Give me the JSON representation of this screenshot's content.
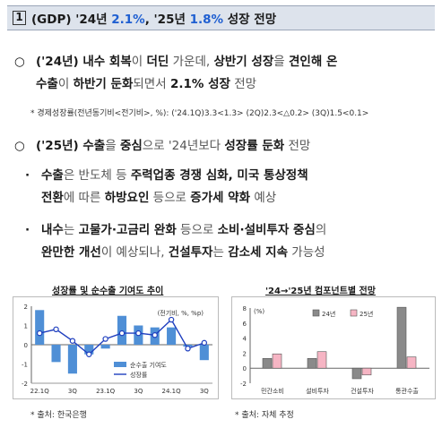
{
  "header": {
    "num": "1",
    "title_a": "(GDP) '24년 ",
    "title_b": "2.1%",
    "title_c": ", '25년 ",
    "title_d": "1.8%",
    "title_e": " 성장 전망"
  },
  "bullet1": {
    "marker": "○",
    "l1": [
      {
        "t": "('24년) 내수 회복",
        "b": true
      },
      {
        "t": "이 ",
        "b": false
      },
      {
        "t": "더딘",
        "b": true
      },
      {
        "t": " 가운데, ",
        "b": false
      },
      {
        "t": "상반기 성장",
        "b": true
      },
      {
        "t": "을 ",
        "b": false
      },
      {
        "t": "견인해 온",
        "b": true
      }
    ],
    "l2": [
      {
        "t": "수출",
        "b": true
      },
      {
        "t": "이 ",
        "b": false
      },
      {
        "t": "하반기 둔화",
        "b": true
      },
      {
        "t": "되면서 ",
        "b": false
      },
      {
        "t": "2.1% 성장",
        "b": true
      },
      {
        "t": " 전망",
        "b": false
      }
    ],
    "note": "* 경제성장률(전년동기비<전기비>, %): ('24.1Q)3.3<1.3> (2Q)2.3<△0.2> (3Q)1.5<0.1>"
  },
  "bullet2": {
    "marker": "○",
    "l1": [
      {
        "t": "('25년) 수출",
        "b": true
      },
      {
        "t": "을 ",
        "b": false
      },
      {
        "t": "중심",
        "b": true
      },
      {
        "t": "으로 '24년보다 ",
        "b": false
      },
      {
        "t": "성장률 둔화",
        "b": true
      },
      {
        "t": " 전망",
        "b": false
      }
    ]
  },
  "sub1": {
    "marker": "·",
    "l1": [
      {
        "t": "수출",
        "b": true
      },
      {
        "t": "은 반도체 등 ",
        "b": false
      },
      {
        "t": "주력업종 경쟁 심화, 미국 통상정책",
        "b": true
      }
    ],
    "l2": [
      {
        "t": "전환",
        "b": true
      },
      {
        "t": "에 따른 ",
        "b": false
      },
      {
        "t": "하방요인",
        "b": true
      },
      {
        "t": " 등으로 ",
        "b": false
      },
      {
        "t": "증가세 약화",
        "b": true
      },
      {
        "t": " 예상",
        "b": false
      }
    ]
  },
  "sub2": {
    "marker": "·",
    "l1": [
      {
        "t": "내수",
        "b": true
      },
      {
        "t": "는 ",
        "b": false
      },
      {
        "t": "고물가·고금리 완화",
        "b": true
      },
      {
        "t": " 등으로 ",
        "b": false
      },
      {
        "t": "소비·설비투자 중심",
        "b": true
      },
      {
        "t": "의",
        "b": false
      }
    ],
    "l2": [
      {
        "t": "완만한 개선",
        "b": true
      },
      {
        "t": "이 예상되나, ",
        "b": false
      },
      {
        "t": "건설투자",
        "b": true
      },
      {
        "t": "는 ",
        "b": false
      },
      {
        "t": "감소세 지속",
        "b": true
      },
      {
        "t": " 가능성",
        "b": false
      }
    ]
  },
  "chart1": {
    "title": "성장률 및 순수출 기여도 추이",
    "source": "* 출처: 한국은행"
  },
  "chart2": {
    "title": "'24→'25년 컴포넌트별 전망",
    "source": "* 출처: 자체 추정"
  },
  "chart_data": [
    {
      "type": "bar",
      "title": "성장률 및 순수출 기여도 추이",
      "unit_label": "(전기비, %, %p)",
      "x_tick_labels": [
        "22.1Q",
        "3Q",
        "23.1Q",
        "3Q",
        "24.1Q",
        "3Q"
      ],
      "categories": [
        "22.1Q",
        "22.2Q",
        "22.3Q",
        "22.4Q",
        "23.1Q",
        "23.2Q",
        "23.3Q",
        "23.4Q",
        "24.1Q",
        "24.2Q",
        "24.3Q"
      ],
      "ylim": [
        -2,
        2
      ],
      "yticks": [
        -2,
        -1,
        0,
        1,
        2
      ],
      "series": [
        {
          "name": "순수출 기여도",
          "kind": "bar",
          "color": "#4f8fd6",
          "values": [
            1.8,
            -0.9,
            -1.5,
            -0.5,
            -0.2,
            1.5,
            1.0,
            0.9,
            0.9,
            -0.1,
            -0.8
          ]
        },
        {
          "name": "성장률",
          "kind": "line",
          "color": "#1f3fbf",
          "values": [
            0.6,
            0.8,
            0.2,
            -0.5,
            0.3,
            0.6,
            0.6,
            0.5,
            1.3,
            -0.2,
            0.1
          ]
        }
      ]
    },
    {
      "type": "bar",
      "title": "'24→'25년 컴포넌트별 전망",
      "unit_label": "(%)",
      "categories": [
        "민간소비",
        "설비투자",
        "건설투자",
        "통관수출"
      ],
      "ylim": [
        -2,
        8
      ],
      "yticks": [
        -2,
        0,
        2,
        4,
        6,
        8
      ],
      "series": [
        {
          "name": "24년",
          "color": "#8a8a8a",
          "values": [
            1.3,
            1.3,
            -1.4,
            8.1
          ]
        },
        {
          "name": "25년",
          "color": "#f6b5c4",
          "values": [
            1.9,
            2.2,
            -0.9,
            1.5
          ]
        }
      ]
    }
  ]
}
